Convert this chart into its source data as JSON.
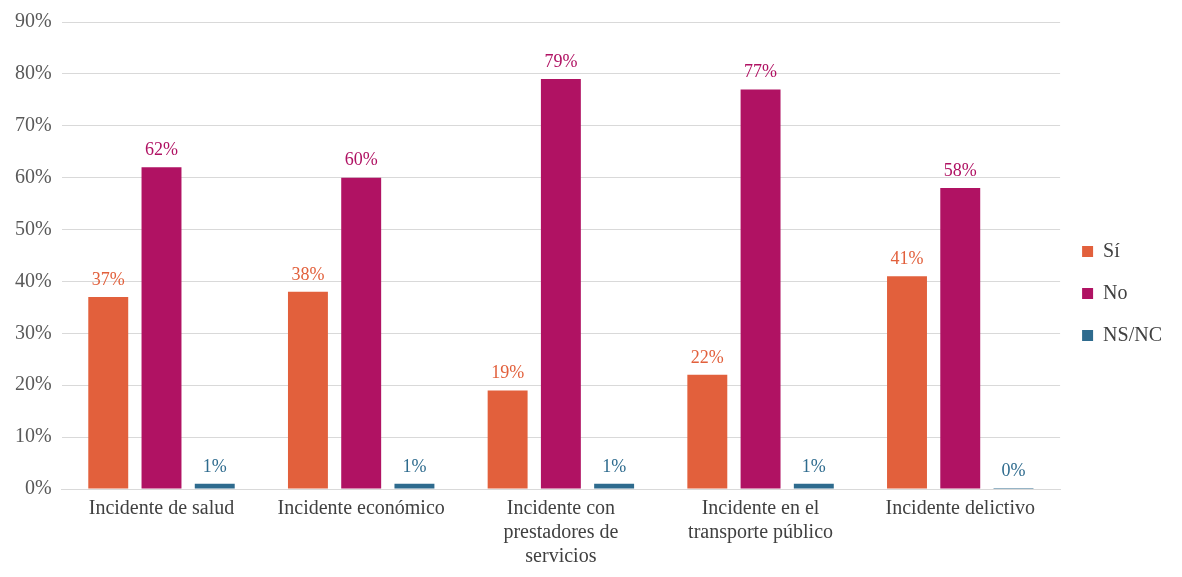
{
  "chart_data": {
    "type": "bar",
    "categories": [
      "Incidente de salud",
      "Incidente económico",
      "Incidente con prestadores de servicios",
      "Incidente en el transporte público",
      "Incidente delictivo"
    ],
    "series": [
      {
        "name": "Sí",
        "color": "#e2603c",
        "values": [
          37,
          38,
          19,
          22,
          41
        ],
        "value_labels": [
          "37%",
          "38%",
          "19%",
          "22%",
          "41%"
        ]
      },
      {
        "name": "No",
        "color": "#b01263",
        "values": [
          62,
          60,
          79,
          77,
          58
        ],
        "value_labels": [
          "62%",
          "60%",
          "79%",
          "77%",
          "58%"
        ]
      },
      {
        "name": "NS/NC",
        "color": "#2e6b8e",
        "values": [
          1,
          1,
          1,
          1,
          0
        ],
        "value_labels": [
          "1%",
          "1%",
          "1%",
          "1%",
          "0%"
        ]
      }
    ],
    "ylim": [
      0,
      90
    ],
    "yticks": [
      {
        "value": 0,
        "label": "0%"
      },
      {
        "value": 10,
        "label": "10%"
      },
      {
        "value": 20,
        "label": "20%"
      },
      {
        "value": 30,
        "label": "30%"
      },
      {
        "value": 40,
        "label": "40%"
      },
      {
        "value": 50,
        "label": "50%"
      },
      {
        "value": 60,
        "label": "60%"
      },
      {
        "value": 70,
        "label": "70%"
      },
      {
        "value": 80,
        "label": "80%"
      },
      {
        "value": 90,
        "label": "90%"
      }
    ],
    "grid": "y",
    "legend": "right"
  }
}
